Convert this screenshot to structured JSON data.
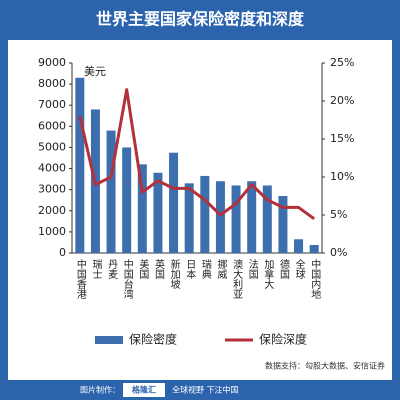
{
  "chart_data": {
    "type": "bar",
    "title": "世界主要国家保险密度和深度",
    "y_unit_label": "美元",
    "categories": [
      "中国香港",
      "瑞士",
      "丹麦",
      "中国台湾",
      "美国",
      "英国",
      "新加坡",
      "日本",
      "瑞典",
      "挪威",
      "澳大利亚",
      "法国",
      "加拿大",
      "德国",
      "全球",
      "中国内地"
    ],
    "series": [
      {
        "name": "保险密度",
        "type": "bar",
        "color": "#3d6fae",
        "values": [
          8300,
          6800,
          5800,
          5000,
          4200,
          3800,
          4750,
          3300,
          3650,
          3400,
          3200,
          3400,
          3200,
          2700,
          650,
          380
        ]
      },
      {
        "name": "保险深度",
        "type": "line",
        "axis": "y2",
        "color": "#b3313a",
        "values": [
          18,
          9,
          10,
          21.5,
          8,
          9.5,
          8.5,
          8.5,
          7,
          5,
          6.5,
          9,
          7,
          6,
          6,
          4.5
        ]
      }
    ],
    "ylim": [
      0,
      9000
    ],
    "yticks": [
      0,
      1000,
      2000,
      3000,
      4000,
      5000,
      6000,
      7000,
      8000,
      9000
    ],
    "y2lim": [
      0,
      25
    ],
    "y2ticks": [
      {
        "value": 0,
        "label": "0%"
      },
      {
        "value": 5,
        "label": "5%"
      },
      {
        "value": 10,
        "label": "10%"
      },
      {
        "value": 15,
        "label": "15%"
      },
      {
        "value": 20,
        "label": "20%"
      },
      {
        "value": 25,
        "label": "25%"
      }
    ],
    "legend": "bottom"
  },
  "footer": {
    "source": "数据支持：勾股大数据、安信证券",
    "credit_label": "图片制作：",
    "brand": "格隆汇",
    "slogan": "全球视野 下注中国"
  }
}
